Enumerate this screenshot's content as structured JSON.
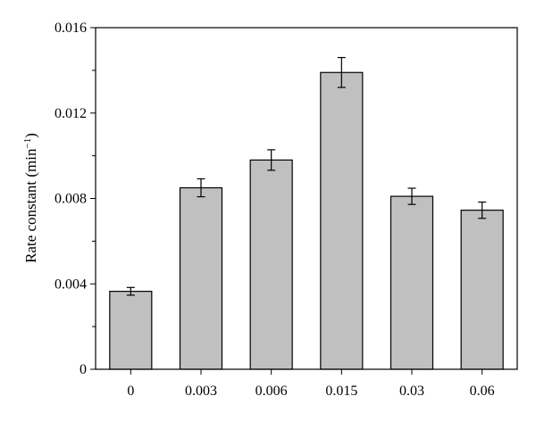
{
  "chart_data": {
    "type": "bar",
    "title": "",
    "xlabel": "",
    "ylabel": "Rate constant (min",
    "ylabel_sup": "−1",
    "ylabel_close": ")",
    "categories": [
      "0",
      "0.003",
      "0.006",
      "0.015",
      "0.03",
      "0.06"
    ],
    "values": [
      0.00365,
      0.0085,
      0.0098,
      0.0139,
      0.0081,
      0.00745
    ],
    "errors": [
      0.00018,
      0.00042,
      0.00048,
      0.0007,
      0.00038,
      0.00038
    ],
    "ylim": [
      0,
      0.016
    ],
    "yticks": [
      0,
      0.004,
      0.008,
      0.012,
      0.016
    ],
    "ytick_labels": [
      "0",
      "0.004",
      "0.008",
      "0.012",
      "0.016"
    ],
    "grid": false,
    "bar_color": "#c0c0c0",
    "edge_color": "#000000"
  }
}
